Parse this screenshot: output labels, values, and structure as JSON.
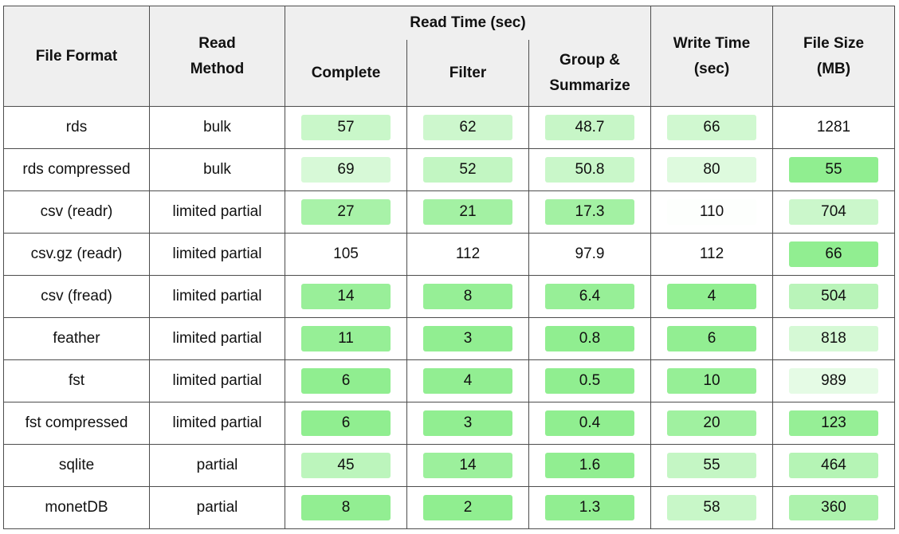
{
  "chart_data": {
    "type": "table",
    "header": {
      "file_format": "File Format",
      "read_method": [
        "Read",
        "Method"
      ],
      "read_time_group": "Read Time (sec)",
      "complete": "Complete",
      "filter": "Filter",
      "group_summarize": [
        "Group &",
        "Summarize"
      ],
      "write_time": [
        "Write Time",
        "(sec)"
      ],
      "file_size": [
        "File Size",
        "(MB)"
      ]
    },
    "rows": [
      {
        "format": "rds",
        "method": "bulk",
        "complete": "57",
        "filter": "62",
        "group": "48.7",
        "write": "66",
        "size": "1281"
      },
      {
        "format": "rds compressed",
        "method": "bulk",
        "complete": "69",
        "filter": "52",
        "group": "50.8",
        "write": "80",
        "size": "55"
      },
      {
        "format": "csv (readr)",
        "method": "limited partial",
        "complete": "27",
        "filter": "21",
        "group": "17.3",
        "write": "110",
        "size": "704"
      },
      {
        "format": "csv.gz (readr)",
        "method": "limited partial",
        "complete": "105",
        "filter": "112",
        "group": "97.9",
        "write": "112",
        "size": "66"
      },
      {
        "format": "csv (fread)",
        "method": "limited partial",
        "complete": "14",
        "filter": "8",
        "group": "6.4",
        "write": "4",
        "size": "504"
      },
      {
        "format": "feather",
        "method": "limited partial",
        "complete": "11",
        "filter": "3",
        "group": "0.8",
        "write": "6",
        "size": "818"
      },
      {
        "format": "fst",
        "method": "limited partial",
        "complete": "6",
        "filter": "4",
        "group": "0.5",
        "write": "10",
        "size": "989"
      },
      {
        "format": "fst compressed",
        "method": "limited partial",
        "complete": "6",
        "filter": "3",
        "group": "0.4",
        "write": "20",
        "size": "123"
      },
      {
        "format": "sqlite",
        "method": "partial",
        "complete": "45",
        "filter": "14",
        "group": "1.6",
        "write": "55",
        "size": "464"
      },
      {
        "format": "monetDB",
        "method": "partial",
        "complete": "8",
        "filter": "2",
        "group": "1.3",
        "write": "58",
        "size": "360"
      }
    ],
    "colors": {
      "strong": "#90ee90",
      "faint": "#ffffff",
      "header_bg": "#efefef",
      "border": "#4d4d4d"
    }
  }
}
